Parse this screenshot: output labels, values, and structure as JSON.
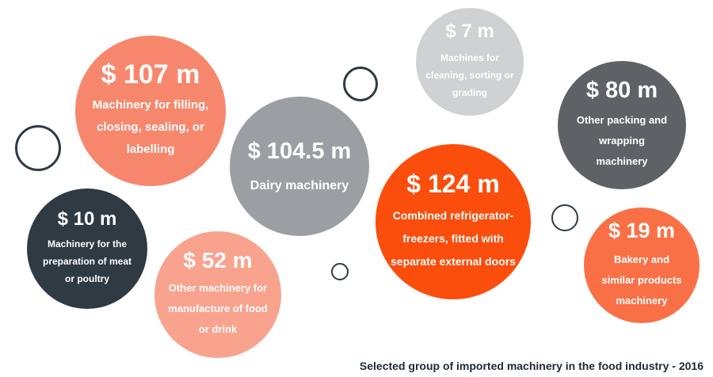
{
  "chart_data": {
    "type": "bubble",
    "title": "Selected group of imported machinery in the food industry - 2016",
    "unit": "$ m",
    "items": [
      {
        "value_text": "$ 107 m",
        "value": 107,
        "label": "Machinery for filling, closing, sealing, or labelling",
        "color": "#f7876c"
      },
      {
        "value_text": "$ 104.5 m",
        "value": 104.5,
        "label": "Dairy machinery",
        "color": "#9b9fa3"
      },
      {
        "value_text": "$ 7 m",
        "value": 7,
        "label": "Machines for cleaning, sorting or grading",
        "color": "#cfd1d3"
      },
      {
        "value_text": "$ 80 m",
        "value": 80,
        "label": "Other packing and wrapping machinery",
        "color": "#5e6266"
      },
      {
        "value_text": "$ 124 m",
        "value": 124,
        "label": "Combined refrigerator-freezers, fitted with separate external doors",
        "color": "#fb4d0c"
      },
      {
        "value_text": "$ 10 m",
        "value": 10,
        "label": "Machinery for the preparation of meat or poultry",
        "color": "#2f3a43"
      },
      {
        "value_text": "$ 52 m",
        "value": 52,
        "label": "Other machinery for manufacture of food or drink",
        "color": "#f9a38e"
      },
      {
        "value_text": "$ 19 m",
        "value": 19,
        "label": "Bakery and similar products machinery",
        "color": "#fa7046"
      }
    ]
  }
}
